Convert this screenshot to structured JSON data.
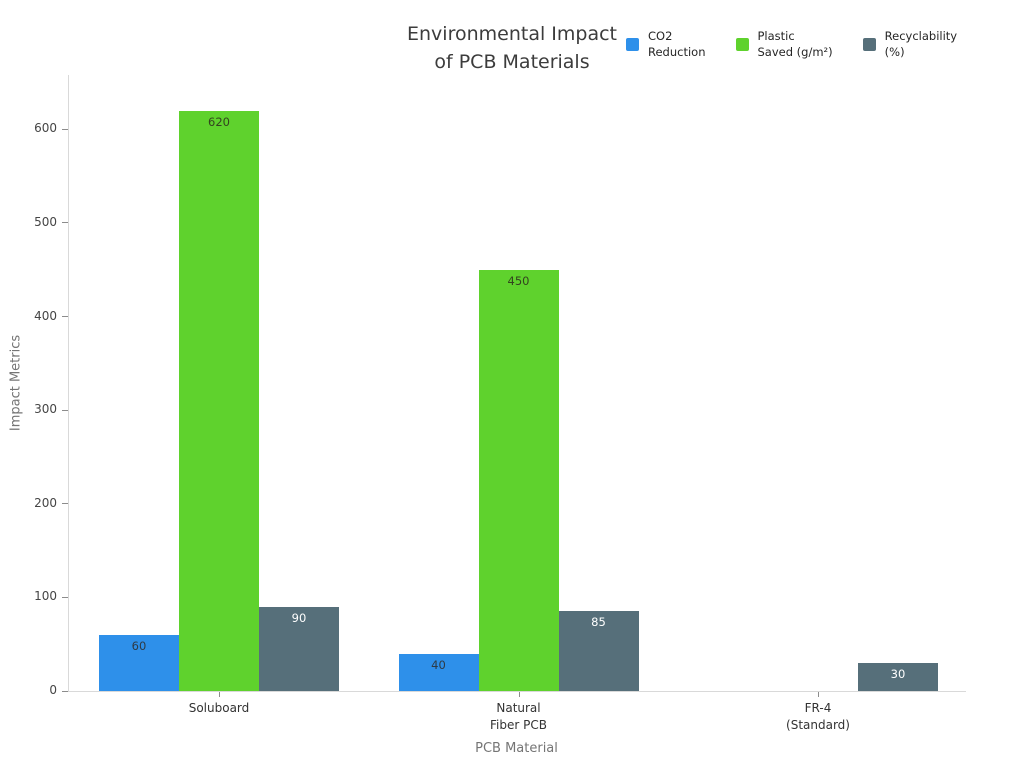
{
  "title": "Environmental Impact\nof PCB Materials",
  "chart_data": {
    "type": "bar",
    "categories": [
      "Soluboard",
      "Natural\nFiber PCB",
      "FR-4\n(Standard)"
    ],
    "series": [
      {
        "name": "CO2 Reduction",
        "legend": "CO2\nReduction",
        "color": "#2e90ea",
        "label_color": "#2e3a45",
        "values": [
          60,
          40,
          0
        ]
      },
      {
        "name": "Plastic Saved (g/m²)",
        "legend": "Plastic\nSaved (g/m²)",
        "color": "#5fd22d",
        "label_color": "#33441f",
        "values": [
          620,
          450,
          0
        ]
      },
      {
        "name": "Recyclability (%)",
        "legend": "Recyclability\n(%)",
        "color": "#566f7a",
        "label_color": "#ffffff",
        "values": [
          90,
          85,
          30
        ]
      }
    ],
    "xlabel": "PCB Material",
    "ylabel": "Impact Metrics",
    "yticks": [
      0,
      100,
      200,
      300,
      400,
      500,
      600
    ],
    "ylim": [
      0,
      658
    ],
    "grid": false,
    "legend_position": "top-right",
    "bar_value_labels": true
  }
}
